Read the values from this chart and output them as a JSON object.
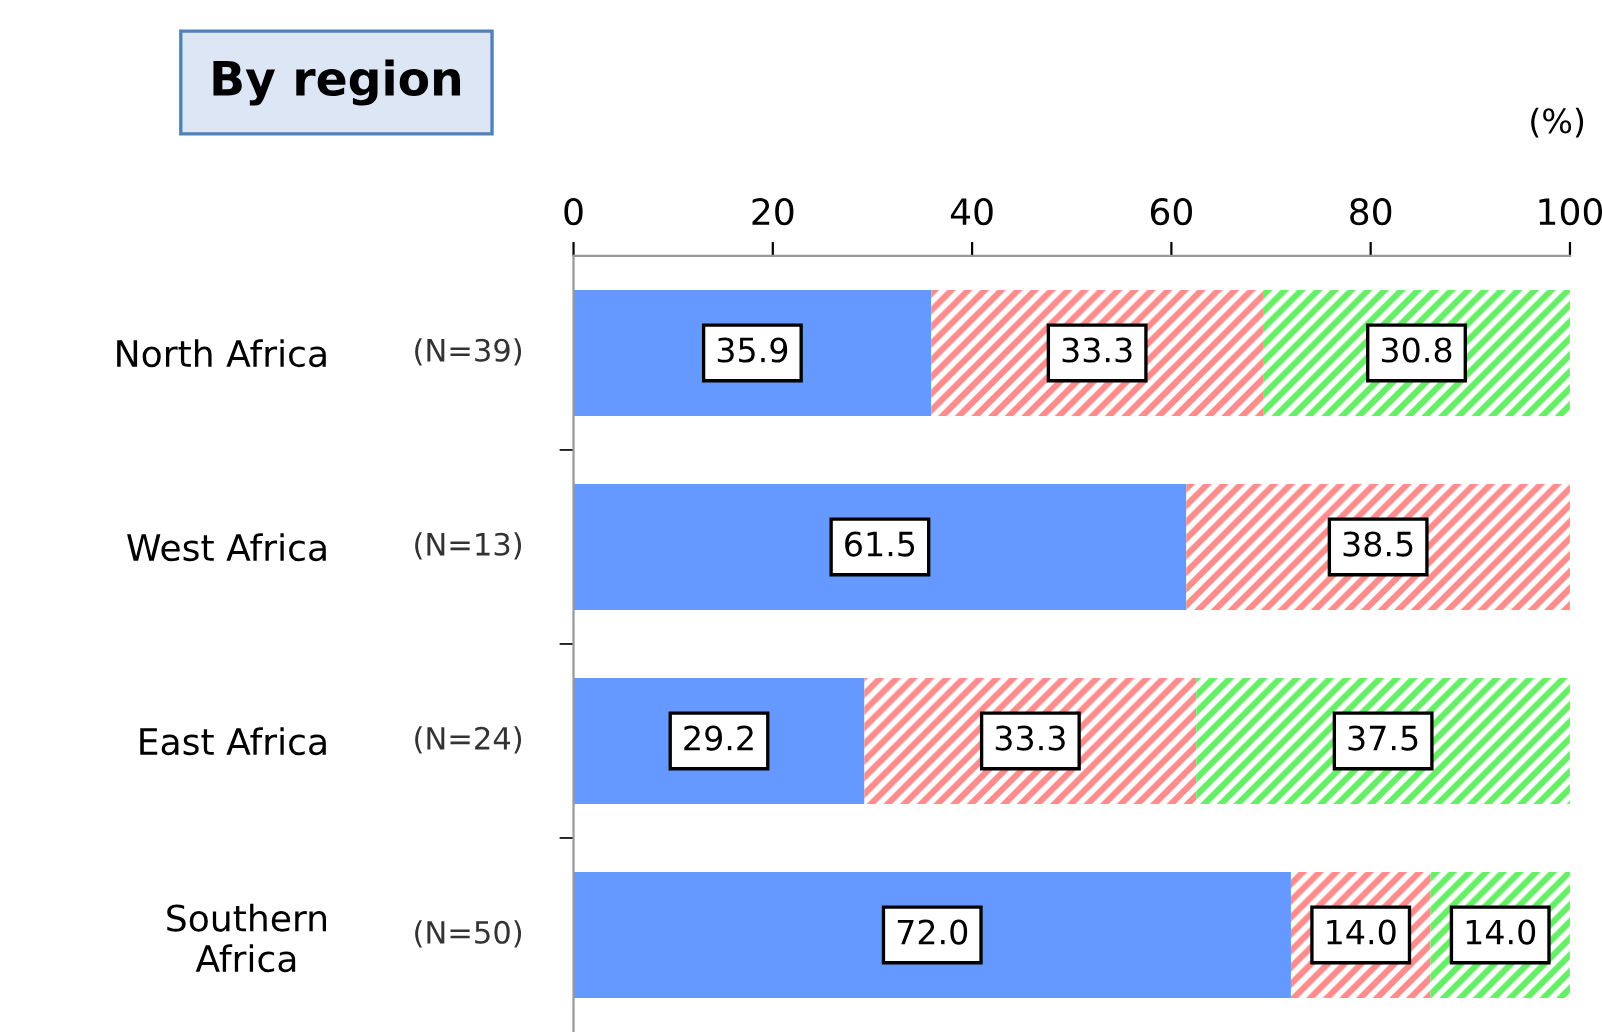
{
  "chart_data": {
    "type": "bar",
    "orientation": "horizontal",
    "stacked": true,
    "title": "By region",
    "categories": [
      "North Africa",
      "West Africa",
      "East Africa",
      "Southern\nAfrica"
    ],
    "series": [
      {
        "color": "#6699ff",
        "values": [
          35.9,
          61.5,
          29.2,
          72.0
        ],
        "value_labels": [
          "35.9",
          "61.5",
          "29.2",
          "72.0"
        ]
      },
      {
        "color": "#ff8c8c",
        "values": [
          33.3,
          38.5,
          33.3,
          14.0
        ],
        "value_labels": [
          "33.3",
          "38.5",
          "33.3",
          "14.0"
        ]
      },
      {
        "color": "#66ee66",
        "values": [
          30.8,
          null,
          37.5,
          14.0
        ],
        "value_labels": [
          "30.8",
          null,
          "37.5",
          "14.0"
        ]
      }
    ],
    "xlim": [
      0,
      100
    ],
    "xticks": [
      0,
      20,
      40,
      60,
      80,
      100
    ],
    "grid": false,
    "annotations": [
      "(%)",
      "(N=39)",
      "(N=13)",
      "(N=24)",
      "(N=50)"
    ]
  }
}
